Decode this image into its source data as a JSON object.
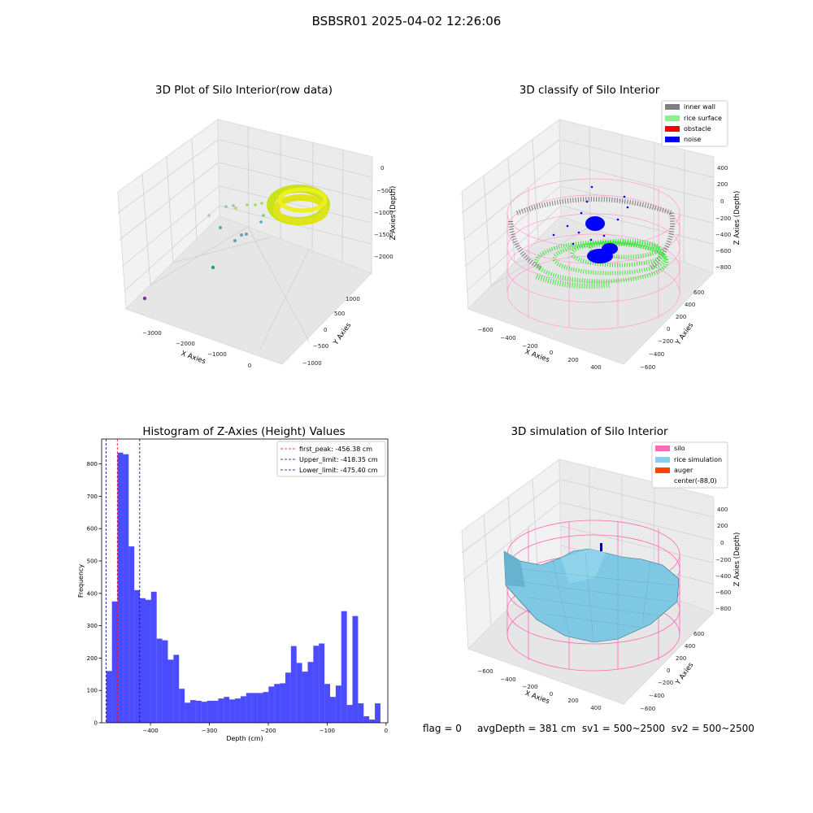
{
  "suptitle": "BSBSR01 2025-04-02 12:26:06",
  "panels": {
    "raw": {
      "title": "3D Plot of Silo Interior(row data)",
      "xlabel": "X Axies",
      "ylabel": "Y Axies",
      "zlabel": "Z Axies (Depth)",
      "xticks": [
        "−3000",
        "−2000",
        "−1000",
        "0"
      ],
      "yticks": [
        "−1000",
        "−500",
        "0",
        "500",
        "1000"
      ],
      "zticks": [
        "0",
        "−500",
        "−1000",
        "−1500",
        "−2000"
      ]
    },
    "classify": {
      "title": "3D classify of Silo Interior",
      "xlabel": "X Axies",
      "ylabel": "Y Axies",
      "zlabel": "Z Axies (Depth)",
      "xticks": [
        "−600",
        "−400",
        "−200",
        "0",
        "200",
        "400"
      ],
      "yticks": [
        "−600",
        "−400",
        "−200",
        "0",
        "200",
        "400",
        "600"
      ],
      "zticks": [
        "400",
        "200",
        "0",
        "−200",
        "−400",
        "−600",
        "−800"
      ],
      "legend": [
        {
          "label": "inner wall",
          "color": "#808080"
        },
        {
          "label": "rice surface",
          "color": "#90ee90"
        },
        {
          "label": "obstacle",
          "color": "#ff0000"
        },
        {
          "label": "noise",
          "color": "#0000ff"
        }
      ]
    },
    "simulation": {
      "title": "3D simulation of Silo Interior",
      "xlabel": "X Axies",
      "ylabel": "Y Axies",
      "zlabel": "Z Axies (Depth)",
      "xticks": [
        "−600",
        "−400",
        "−200",
        "0",
        "200",
        "400"
      ],
      "yticks": [
        "−600",
        "−400",
        "−200",
        "0",
        "200",
        "400",
        "600"
      ],
      "zticks": [
        "400",
        "200",
        "0",
        "−200",
        "−400",
        "−600",
        "−800"
      ],
      "legend": [
        {
          "label": "silo",
          "color": "#ff69b4"
        },
        {
          "label": "rice simulation",
          "color": "#87ceeb"
        },
        {
          "label": "auger",
          "color": "#ff4500"
        },
        {
          "label": "center(-88,0)",
          "color": "#ffffff"
        }
      ]
    }
  },
  "chart_data": {
    "type": "bar",
    "title": "Histogram of Z-Axies (Height) Values",
    "xlabel": "Depth (cm)",
    "ylabel": "Frequency",
    "xlim": [
      -483,
      3
    ],
    "ylim": [
      0,
      877
    ],
    "xticks": [
      -400,
      -300,
      -200,
      -100,
      0
    ],
    "yticks": [
      0,
      100,
      200,
      300,
      400,
      500,
      600,
      700,
      800
    ],
    "bar_color": "#0000ff",
    "bins_start": -475,
    "bin_width": 9.5,
    "values": [
      160,
      375,
      835,
      830,
      545,
      410,
      385,
      380,
      405,
      260,
      255,
      195,
      210,
      105,
      62,
      70,
      68,
      65,
      68,
      68,
      75,
      80,
      72,
      75,
      82,
      92,
      92,
      92,
      95,
      112,
      120,
      122,
      155,
      237,
      185,
      158,
      188,
      238,
      245,
      120,
      80,
      115,
      345,
      55,
      330,
      60,
      20,
      10,
      60
    ],
    "vlines": [
      {
        "label": "first_peak: -456.38 cm",
        "x": -456.38,
        "color": "#ff0000"
      },
      {
        "label": "Upper_limit: -418.35 cm",
        "x": -418.35,
        "color": "#00008b"
      },
      {
        "label": "Lower_limit: -475.40 cm",
        "x": -475.4,
        "color": "#00008b"
      }
    ],
    "legend_position": "top-right"
  },
  "status": {
    "flag": "flag = 0",
    "avg": "avgDepth = 381 cm",
    "sv1": "sv1 = 500~2500",
    "sv2": "sv2 = 500~2500"
  }
}
